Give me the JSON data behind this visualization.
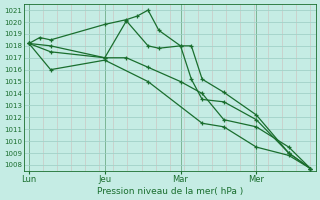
{
  "background_color": "#c5ece4",
  "grid_color_major": "#9ecfc5",
  "grid_color_minor": "#b8e0d8",
  "line_color": "#1a6e2e",
  "ylim": [
    1007.5,
    1021.5
  ],
  "yticks": [
    1008,
    1009,
    1010,
    1011,
    1012,
    1013,
    1014,
    1015,
    1016,
    1017,
    1018,
    1019,
    1020,
    1021
  ],
  "xlabel": "Pression niveau de la mer( hPa )",
  "xtick_labels": [
    "Lun",
    "Jeu",
    "Mar",
    "Mer"
  ],
  "xtick_positions": [
    0,
    28,
    56,
    84
  ],
  "vline_positions": [
    0,
    28,
    56,
    84
  ],
  "x_max": 104,
  "series": [
    {
      "x": [
        0,
        4,
        8,
        28,
        36,
        40,
        44,
        48,
        56,
        60,
        64,
        72,
        84,
        96,
        104
      ],
      "y": [
        1018.2,
        1018.7,
        1018.5,
        1019.8,
        1020.2,
        1020.5,
        1021.0,
        1019.3,
        1018.0,
        1018.0,
        1015.2,
        1014.1,
        1012.2,
        1009.0,
        1007.7
      ]
    },
    {
      "x": [
        0,
        8,
        28,
        36,
        44,
        48,
        56,
        60,
        64,
        72,
        84,
        96,
        104
      ],
      "y": [
        1018.2,
        1018.0,
        1017.0,
        1020.1,
        1018.0,
        1017.8,
        1018.0,
        1015.2,
        1013.5,
        1013.3,
        1011.8,
        1009.0,
        1007.7
      ]
    },
    {
      "x": [
        0,
        8,
        28,
        36,
        44,
        56,
        64,
        72,
        84,
        96,
        104
      ],
      "y": [
        1018.2,
        1017.5,
        1017.0,
        1017.0,
        1016.2,
        1015.0,
        1014.0,
        1011.8,
        1011.2,
        1009.5,
        1007.7
      ]
    },
    {
      "x": [
        0,
        8,
        28,
        44,
        64,
        72,
        84,
        96,
        104
      ],
      "y": [
        1018.2,
        1016.0,
        1016.8,
        1015.0,
        1011.5,
        1011.2,
        1009.5,
        1008.8,
        1007.7
      ]
    }
  ]
}
